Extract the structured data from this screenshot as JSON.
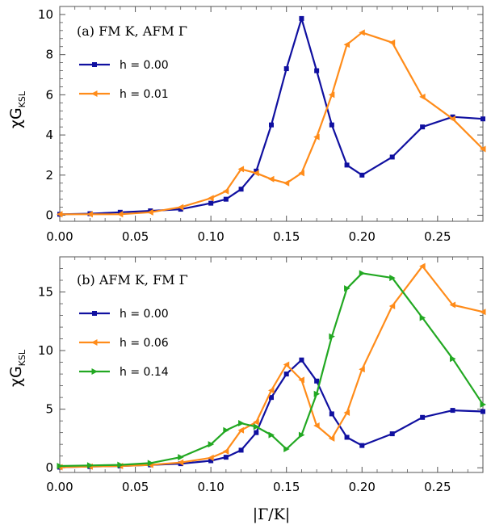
{
  "chart_data": [
    {
      "type": "line",
      "panel_label": "(a) FM K, AFM Γ",
      "ylabel": "χG",
      "ylabel_sub": "KSL",
      "xlim": [
        0,
        0.28
      ],
      "ylim": [
        -0.3,
        10.4
      ],
      "x_ticks": [
        0.0,
        0.05,
        0.1,
        0.15,
        0.2,
        0.25
      ],
      "x_tick_labels": [
        "0.00",
        "0.05",
        "0.10",
        "0.15",
        "0.20",
        "0.25"
      ],
      "y_ticks": [
        0,
        2,
        4,
        6,
        8,
        10
      ],
      "y_tick_labels": [
        "0",
        "2",
        "4",
        "6",
        "8",
        "10"
      ],
      "legend_position": "top-left",
      "series": [
        {
          "name": "h = 0.00",
          "color": "#1010A0",
          "marker": "square",
          "x": [
            0.0,
            0.02,
            0.04,
            0.06,
            0.08,
            0.1,
            0.11,
            0.12,
            0.13,
            0.14,
            0.15,
            0.16,
            0.17,
            0.18,
            0.19,
            0.2,
            0.22,
            0.24,
            0.26,
            0.28
          ],
          "y": [
            0.05,
            0.08,
            0.15,
            0.22,
            0.3,
            0.6,
            0.8,
            1.3,
            2.2,
            4.5,
            7.3,
            9.8,
            7.2,
            4.5,
            2.5,
            2.0,
            2.9,
            4.4,
            4.9,
            4.8
          ]
        },
        {
          "name": "h = 0.01",
          "color": "#FF8C1A",
          "marker": "triangle-left",
          "x": [
            0.0,
            0.02,
            0.04,
            0.06,
            0.08,
            0.1,
            0.11,
            0.12,
            0.13,
            0.14,
            0.15,
            0.16,
            0.17,
            0.18,
            0.19,
            0.2,
            0.22,
            0.24,
            0.26,
            0.28
          ],
          "y": [
            0.05,
            0.05,
            0.05,
            0.15,
            0.4,
            0.85,
            1.2,
            2.3,
            2.1,
            1.8,
            1.6,
            2.1,
            3.9,
            6.0,
            8.5,
            9.1,
            8.6,
            5.9,
            4.8,
            3.3
          ]
        }
      ]
    },
    {
      "type": "line",
      "panel_label": "(b) AFM K, FM Γ",
      "ylabel": "χG",
      "ylabel_sub": "KSL",
      "xlabel": "|Γ/K|",
      "xlim": [
        0,
        0.28
      ],
      "ylim": [
        -0.4,
        18
      ],
      "x_ticks": [
        0.0,
        0.05,
        0.1,
        0.15,
        0.2,
        0.25
      ],
      "x_tick_labels": [
        "0.00",
        "0.05",
        "0.10",
        "0.15",
        "0.20",
        "0.25"
      ],
      "y_ticks": [
        0,
        5,
        10,
        15
      ],
      "y_tick_labels": [
        "0",
        "5",
        "10",
        "15"
      ],
      "legend_position": "top-left",
      "series": [
        {
          "name": "h = 0.00",
          "color": "#1010A0",
          "marker": "square",
          "x": [
            0.0,
            0.02,
            0.04,
            0.06,
            0.08,
            0.1,
            0.11,
            0.12,
            0.13,
            0.14,
            0.15,
            0.16,
            0.17,
            0.18,
            0.19,
            0.2,
            0.22,
            0.24,
            0.26,
            0.28
          ],
          "y": [
            0.05,
            0.1,
            0.15,
            0.25,
            0.35,
            0.6,
            0.9,
            1.5,
            3.0,
            6.0,
            8.0,
            9.2,
            7.4,
            4.6,
            2.6,
            1.9,
            2.9,
            4.3,
            4.9,
            4.8
          ]
        },
        {
          "name": "h = 0.06",
          "color": "#FF8C1A",
          "marker": "triangle-left",
          "x": [
            0.0,
            0.02,
            0.04,
            0.06,
            0.08,
            0.1,
            0.11,
            0.12,
            0.13,
            0.14,
            0.15,
            0.16,
            0.17,
            0.18,
            0.19,
            0.2,
            0.22,
            0.24,
            0.26,
            0.28
          ],
          "y": [
            0.05,
            0.1,
            0.15,
            0.25,
            0.45,
            0.85,
            1.4,
            3.2,
            3.9,
            6.6,
            8.8,
            7.5,
            3.6,
            2.5,
            4.7,
            8.4,
            13.8,
            17.2,
            13.9,
            13.3
          ]
        },
        {
          "name": "h = 0.14",
          "color": "#22A822",
          "marker": "triangle-right",
          "x": [
            0.0,
            0.02,
            0.04,
            0.06,
            0.08,
            0.1,
            0.11,
            0.12,
            0.13,
            0.14,
            0.15,
            0.16,
            0.17,
            0.18,
            0.19,
            0.2,
            0.22,
            0.24,
            0.26,
            0.28
          ],
          "y": [
            0.15,
            0.2,
            0.25,
            0.4,
            0.9,
            2.0,
            3.2,
            3.8,
            3.5,
            2.8,
            1.6,
            2.8,
            6.3,
            11.2,
            15.3,
            16.6,
            16.2,
            12.8,
            9.3,
            5.4
          ]
        }
      ]
    }
  ]
}
